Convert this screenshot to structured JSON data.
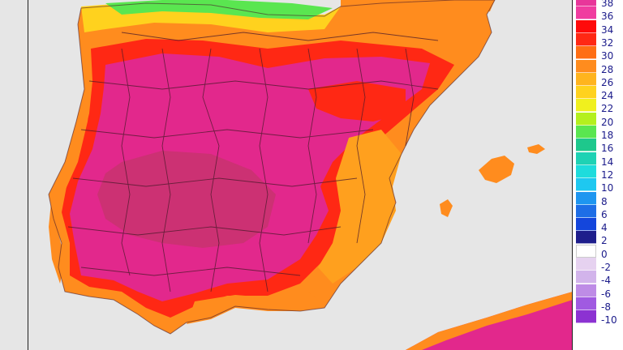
{
  "map": {
    "title": "",
    "subject": "temperature map of the Iberian Peninsula and Balearic Islands",
    "colors": {
      "sea": "#e6e6e6",
      "very_hot": "#e2288c",
      "hot_dark": "#c8326e",
      "red": "#ff1e1e",
      "orange": "#ff8c14",
      "orange_light": "#ffa01e",
      "yellow": "#ffd21e",
      "yellow_green": "#c8e61e",
      "green": "#3cdc5a",
      "border_lines": "#4a1a2a"
    }
  },
  "legend": {
    "items": [
      {
        "label": "38",
        "color": "#e8369a"
      },
      {
        "label": "36",
        "color": "#f03ca0"
      },
      {
        "label": "34",
        "color": "#ff0a0a"
      },
      {
        "label": "32",
        "color": "#ff2814"
      },
      {
        "label": "30",
        "color": "#ff6e14"
      },
      {
        "label": "28",
        "color": "#ff8c1e"
      },
      {
        "label": "26",
        "color": "#ffb41e"
      },
      {
        "label": "24",
        "color": "#ffd21e"
      },
      {
        "label": "22",
        "color": "#f0f01e"
      },
      {
        "label": "20",
        "color": "#b4f01e"
      },
      {
        "label": "18",
        "color": "#5ae650"
      },
      {
        "label": "16",
        "color": "#1ec88c"
      },
      {
        "label": "14",
        "color": "#1ed2b4"
      },
      {
        "label": "12",
        "color": "#1edcdc"
      },
      {
        "label": "10",
        "color": "#1ec8f0"
      },
      {
        "label": "8",
        "color": "#1e96f0"
      },
      {
        "label": "6",
        "color": "#1e6ee6"
      },
      {
        "label": "4",
        "color": "#1446dc"
      },
      {
        "label": "2",
        "color": "#1e1e8c"
      },
      {
        "label": "0",
        "color": "#ffffff"
      },
      {
        "label": "-2",
        "color": "#e6d2f0"
      },
      {
        "label": "-4",
        "color": "#d2b4eb"
      },
      {
        "label": "-6",
        "color": "#be8ce6"
      },
      {
        "label": "-8",
        "color": "#a05ae1"
      },
      {
        "label": "-10",
        "color": "#8c32d2"
      }
    ]
  }
}
